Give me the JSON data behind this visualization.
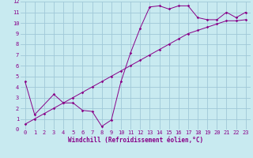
{
  "xlabel": "Windchill (Refroidissement éolien,°C)",
  "bg_color": "#c8eaf0",
  "grid_color": "#a0c8d8",
  "line_color": "#880088",
  "xlim": [
    -0.5,
    23.5
  ],
  "ylim": [
    0,
    12
  ],
  "xticks": [
    0,
    1,
    2,
    3,
    4,
    5,
    6,
    7,
    8,
    9,
    10,
    11,
    12,
    13,
    14,
    15,
    16,
    17,
    18,
    19,
    20,
    21,
    22,
    23
  ],
  "yticks": [
    0,
    1,
    2,
    3,
    4,
    5,
    6,
    7,
    8,
    9,
    10,
    11,
    12
  ],
  "series1_x": [
    0,
    1,
    3,
    4,
    5,
    6,
    7,
    8,
    9,
    10,
    11,
    12,
    13,
    14,
    15,
    16,
    17,
    18,
    19,
    20,
    21,
    22,
    23
  ],
  "series1_y": [
    4.5,
    1.4,
    3.3,
    2.5,
    2.5,
    1.8,
    1.7,
    0.3,
    0.9,
    4.5,
    7.2,
    9.5,
    11.5,
    11.6,
    11.3,
    11.6,
    11.6,
    10.5,
    10.3,
    10.3,
    11.0,
    10.5,
    11.0
  ],
  "series2_x": [
    0,
    1,
    2,
    3,
    4,
    5,
    6,
    7,
    8,
    9,
    10,
    11,
    12,
    13,
    14,
    15,
    16,
    17,
    18,
    19,
    20,
    21,
    22,
    23
  ],
  "series2_y": [
    0.5,
    1.0,
    1.5,
    2.0,
    2.5,
    3.0,
    3.5,
    4.0,
    4.5,
    5.0,
    5.5,
    6.0,
    6.5,
    7.0,
    7.5,
    8.0,
    8.5,
    9.0,
    9.3,
    9.6,
    9.9,
    10.2,
    10.2,
    10.3
  ],
  "tick_fontsize": 5.0,
  "xlabel_fontsize": 5.5,
  "marker_size": 1.8,
  "line_width": 0.7
}
